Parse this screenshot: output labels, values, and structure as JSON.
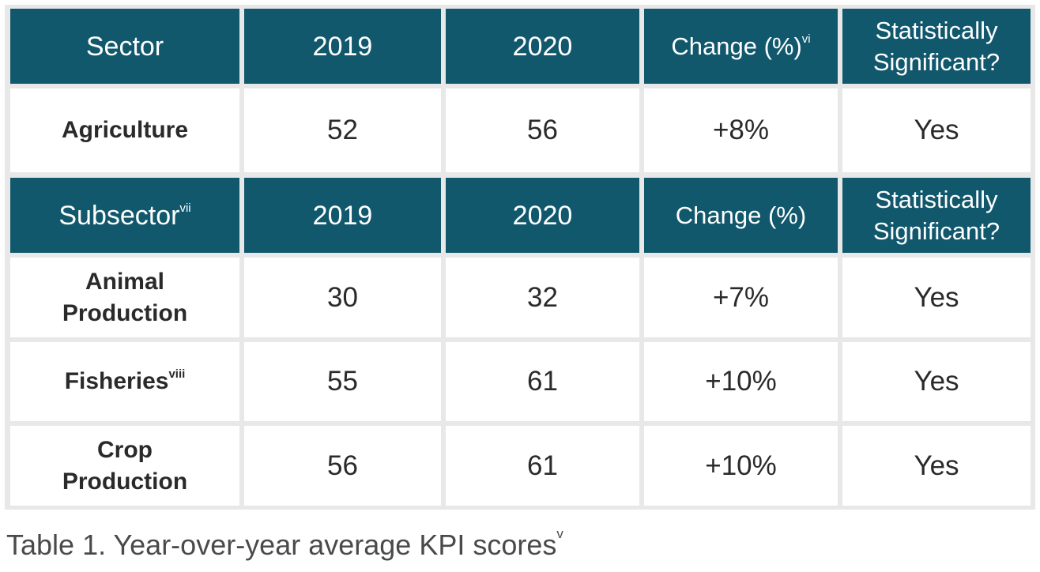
{
  "sector_header": {
    "sector_label": "Sector",
    "col_2019": "2019",
    "col_2020": "2020",
    "change_label": "Change (%)",
    "change_note": "vi",
    "significant_line1": "Statistically",
    "significant_line2": "Significant?"
  },
  "sector_row": {
    "name": "Agriculture",
    "v2019": "52",
    "v2020": "56",
    "change": "+8%",
    "significant": "Yes"
  },
  "subsector_header": {
    "subsector_label": "Subsector",
    "subsector_note": "vii",
    "col_2019": "2019",
    "col_2020": "2020",
    "change_label": "Change (%)",
    "significant_line1": "Statistically",
    "significant_line2": "Significant?"
  },
  "subsector_rows": [
    {
      "name_line1": "Animal",
      "name_line2": "Production",
      "v2019": "30",
      "v2020": "32",
      "change": "+7%",
      "significant": "Yes"
    },
    {
      "name": "Fisheries",
      "note": "viii",
      "v2019": "55",
      "v2020": "61",
      "change": "+10%",
      "significant": "Yes"
    },
    {
      "name_line1": "Crop",
      "name_line2": "Production",
      "v2019": "56",
      "v2020": "61",
      "change": "+10%",
      "significant": "Yes"
    }
  ],
  "caption": {
    "text": "Table 1. Year-over-year average KPI scores",
    "note": "v"
  },
  "colors": {
    "header_bg": "#11586d",
    "header_text": "#ffffff",
    "grid_bg": "#e8e8e8"
  }
}
